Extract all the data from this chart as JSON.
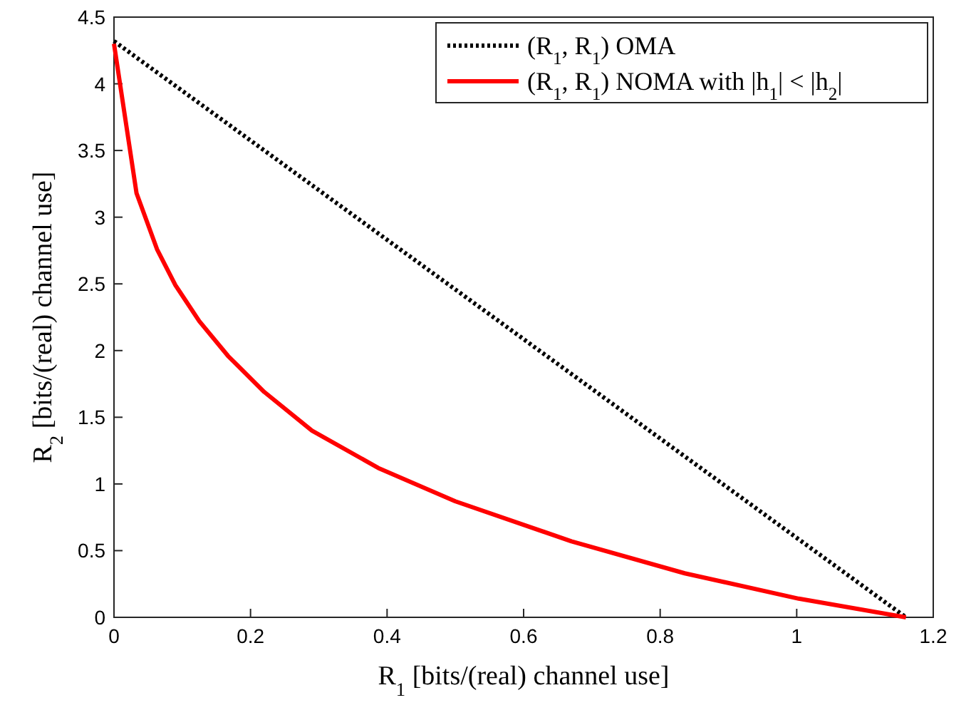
{
  "chart_data": {
    "type": "line",
    "xlabel": "R$_{1}$   [bits/(real) channel use]",
    "ylabel": "R$_{2}$   [bits/(real) channel use]",
    "xlim": [
      0,
      1.2
    ],
    "xticks": [
      0,
      0.2,
      0.4,
      0.6,
      0.8,
      1,
      1.2
    ],
    "ylim": [
      0,
      4.5
    ],
    "yticks": [
      0,
      0.5,
      1,
      1.5,
      2,
      2.5,
      3,
      3.5,
      4,
      4.5
    ],
    "grid": false,
    "legend": "top right",
    "series": [
      {
        "name": "(R$_{1}$, R$_{1}$)    OMA",
        "color": "#000000",
        "line_style": "dotted",
        "x": [
          0,
          1.16
        ],
        "values": [
          4.32,
          0
        ]
      },
      {
        "name": "(R$_{1}$, R$_{1}$) NOMA with |h$_{1}$| < |h$_{2}$|",
        "color": "#ff0000",
        "line_style": "solid",
        "x": [
          0,
          0.033,
          0.063,
          0.09,
          0.125,
          0.167,
          0.22,
          0.29,
          0.387,
          0.5,
          0.67,
          0.836,
          1.003,
          1.16
        ],
        "values": [
          4.3,
          3.18,
          2.76,
          2.49,
          2.22,
          1.96,
          1.69,
          1.4,
          1.12,
          0.87,
          0.57,
          0.33,
          0.14,
          0
        ]
      }
    ]
  }
}
